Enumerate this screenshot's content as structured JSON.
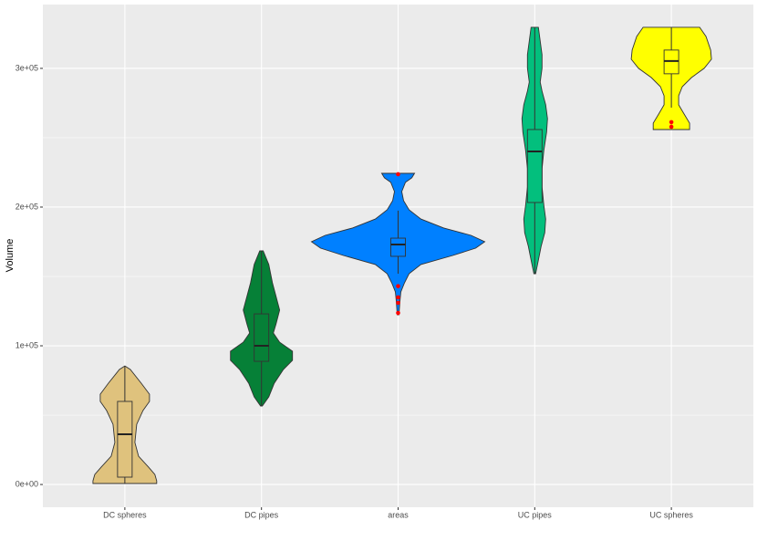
{
  "chart_data": {
    "type": "violin",
    "y_label": "Volume",
    "categories": [
      "DC spheres",
      "DC pipes",
      "areas",
      "UC pipes",
      "UC spheres"
    ],
    "ylim": [
      -16400,
      346000
    ],
    "yticks": [
      {
        "value": 0,
        "label": "0e+00"
      },
      {
        "value": 100000,
        "label": "1e+05"
      },
      {
        "value": 200000,
        "label": "2e+05"
      },
      {
        "value": 300000,
        "label": "3e+05"
      }
    ],
    "grid": true,
    "outlier_color": "#ff0000",
    "violins": [
      {
        "color": "#dfc27d",
        "profile": {
          "y": [
            85500,
            82900,
            73000,
            65100,
            59900,
            53300,
            43400,
            30300,
            20400,
            12500,
            7200,
            2600,
            700
          ],
          "width": [
            0,
            0.063,
            0.19,
            0.284,
            0.284,
            0.21,
            0.137,
            0.116,
            0.158,
            0.274,
            0.347,
            0.368,
            0.368
          ]
        },
        "box": {
          "min": 700,
          "q1": 5300,
          "median": 36200,
          "q3": 59900,
          "max": 85500
        },
        "outliers": []
      },
      {
        "color": "#068037",
        "profile": {
          "y": [
            168400,
            158600,
            145400,
            135500,
            125700,
            115800,
            109200,
            102600,
            96100,
            89500,
            82900,
            73000,
            63200,
            56600
          ],
          "width": [
            0.02,
            0.084,
            0.126,
            0.168,
            0.21,
            0.168,
            0.137,
            0.21,
            0.358,
            0.358,
            0.253,
            0.147,
            0.084,
            0.01
          ]
        },
        "box": {
          "min": 56600,
          "q1": 88800,
          "median": 100000,
          "q3": 123000,
          "max": 168400
        },
        "outliers": []
      },
      {
        "color": "#0080ff",
        "profile": {
          "y": [
            224300,
            221100,
            217800,
            211200,
            204600,
            198000,
            191400,
            184900,
            179600,
            175000,
            170400,
            165100,
            158600,
            152000,
            145400,
            138800,
            132200,
            122400
          ],
          "width": [
            0.189,
            0.158,
            0.084,
            0.042,
            0.063,
            0.126,
            0.263,
            0.526,
            0.842,
            1,
            0.895,
            0.632,
            0.263,
            0.126,
            0.074,
            0.032,
            0.021,
            0.01
          ]
        },
        "box": {
          "min": 152000,
          "q1": 164500,
          "median": 173000,
          "q3": 177600,
          "max": 197400
        },
        "outliers": [
          223700,
          143000,
          134900,
          131000,
          123700
        ]
      },
      {
        "color": "#03bf7d",
        "profile": {
          "y": [
            329600,
            319700,
            309900,
            300000,
            290100,
            283600,
            273700,
            263800,
            253900,
            240800,
            227600,
            214500,
            201300,
            191400,
            181600,
            171700,
            161800,
            152000
          ],
          "width": [
            0.042,
            0.063,
            0.084,
            0.084,
            0.063,
            0.084,
            0.126,
            0.147,
            0.137,
            0.105,
            0.084,
            0.084,
            0.105,
            0.126,
            0.116,
            0.074,
            0.042,
            0.01
          ]
        },
        "box": {
          "min": 152000,
          "q1": 203300,
          "median": 240100,
          "q3": 255900,
          "max": 329600
        },
        "outliers": []
      },
      {
        "color": "#ffff00",
        "profile": {
          "y": [
            329600,
            323000,
            313200,
            306600,
            300000,
            293400,
            286800,
            280300,
            273700,
            267100,
            260500,
            255900
          ],
          "width": [
            0.326,
            0.4,
            0.453,
            0.463,
            0.379,
            0.232,
            0.126,
            0.084,
            0.084,
            0.147,
            0.21,
            0.21
          ]
        },
        "box": {
          "min": 271700,
          "q1": 296100,
          "median": 305300,
          "q3": 313200,
          "max": 329600
        },
        "outliers": [
          261200,
          257900
        ]
      }
    ]
  }
}
